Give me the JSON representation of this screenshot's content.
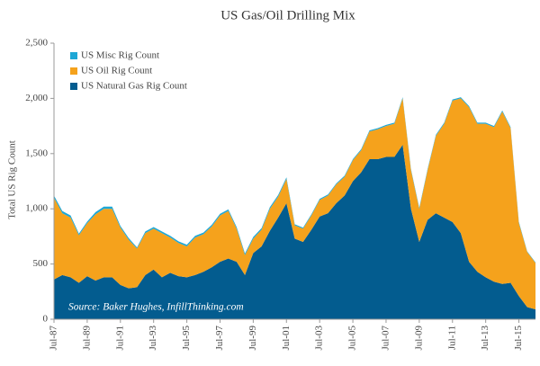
{
  "chart_data": {
    "type": "stacked_area",
    "title": "US Gas/Oil Drilling Mix",
    "y_label": "Total US Rig Count",
    "annotation": "Source: Baker Hughes, InfillThinking.com",
    "categories": [
      "Jul-87",
      null,
      null,
      null,
      "Jul-89",
      null,
      null,
      null,
      "Jul-91",
      null,
      null,
      null,
      "Jul-93",
      null,
      null,
      null,
      "Jul-95",
      null,
      null,
      null,
      "Jul-97",
      null,
      null,
      null,
      "Jul-99",
      null,
      null,
      null,
      "Jul-01",
      null,
      null,
      null,
      "Jul-03",
      null,
      null,
      null,
      "Jul-05",
      null,
      null,
      null,
      "Jul-07",
      null,
      null,
      null,
      "Jul-09",
      null,
      null,
      null,
      "Jul-11",
      null,
      null,
      null,
      "Jul-13",
      null,
      null,
      null,
      "Jul-15",
      null,
      null
    ],
    "series": [
      {
        "name": "US Natural Gas Rig Count",
        "color": "#035c8f",
        "values": [
          360,
          400,
          380,
          330,
          390,
          350,
          380,
          380,
          310,
          280,
          290,
          400,
          450,
          380,
          420,
          390,
          380,
          400,
          430,
          470,
          520,
          550,
          520,
          400,
          600,
          660,
          800,
          920,
          1050,
          730,
          700,
          810,
          930,
          960,
          1050,
          1120,
          1250,
          1330,
          1450,
          1450,
          1470,
          1470,
          1580,
          1000,
          700,
          900,
          960,
          920,
          880,
          780,
          520,
          430,
          380,
          340,
          320,
          330,
          210,
          110,
          90
        ]
      },
      {
        "name": "US Oil Rig Count",
        "color": "#f5a21c",
        "values": [
          740,
          560,
          540,
          430,
          480,
          600,
          620,
          620,
          520,
          440,
          350,
          380,
          370,
          400,
          320,
          300,
          280,
          340,
          340,
          370,
          420,
          430,
          300,
          180,
          130,
          150,
          200,
          190,
          220,
          120,
          120,
          130,
          150,
          160,
          170,
          170,
          190,
          200,
          250,
          270,
          280,
          300,
          420,
          350,
          300,
          450,
          700,
          850,
          1100,
          1220,
          1400,
          1340,
          1390,
          1400,
          1560,
          1400,
          660,
          500,
          420
        ]
      },
      {
        "name": "US Misc Rig Count",
        "color": "#1ea7d6",
        "values": [
          20,
          20,
          20,
          15,
          15,
          20,
          20,
          20,
          15,
          15,
          10,
          15,
          15,
          15,
          15,
          15,
          15,
          15,
          15,
          15,
          15,
          15,
          15,
          15,
          15,
          15,
          15,
          15,
          15,
          10,
          10,
          10,
          10,
          10,
          10,
          10,
          10,
          10,
          10,
          10,
          10,
          10,
          10,
          10,
          10,
          10,
          10,
          10,
          10,
          10,
          10,
          10,
          10,
          10,
          10,
          10,
          10,
          5,
          5
        ]
      }
    ],
    "ylim": [
      0,
      2500
    ],
    "yticks": [
      0,
      500,
      {
        "value": 1000,
        "label": "1,000"
      },
      {
        "value": 1500,
        "label": "1,500"
      },
      {
        "value": 2000,
        "label": "2,000"
      },
      {
        "value": 2500,
        "label": "2,500"
      }
    ],
    "legend": "upper left",
    "grid": false
  }
}
